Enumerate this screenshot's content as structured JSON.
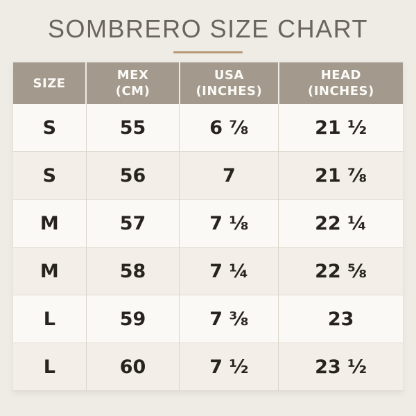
{
  "colors": {
    "page_background": "#efece6",
    "title_text": "#6a645c",
    "title_underline": "#b69877",
    "table_header_background": "#a39a8d",
    "table_header_text": "#fbfaf7",
    "row_odd_background": "#faf9f5",
    "row_even_background": "#f3efe8",
    "cell_text": "#272420",
    "grid_line": "#d9d5ca"
  },
  "chart_data": {
    "type": "table",
    "title": "SOMBRERO SIZE CHART",
    "columns": [
      "SIZE",
      "MEX\n(CM)",
      "USA\n(INCHES)",
      "HEAD\n(INCHES)"
    ],
    "column_keys": [
      "size",
      "mex-cm",
      "usa-inches",
      "head-inches"
    ],
    "rows": [
      [
        "S",
        "55",
        "6 ⅞",
        "21 ½"
      ],
      [
        "S",
        "56",
        "7",
        "21 ⅞"
      ],
      [
        "M",
        "57",
        "7 ⅛",
        "22 ¼"
      ],
      [
        "M",
        "58",
        "7 ¼",
        "22 ⅝"
      ],
      [
        "L",
        "59",
        "7 ⅜",
        "23"
      ],
      [
        "L",
        "60",
        "7 ½",
        "23 ½"
      ]
    ],
    "layout_hints": {
      "header_row": true,
      "alternating_row_stripes": true,
      "all_cells_centered": true
    }
  }
}
